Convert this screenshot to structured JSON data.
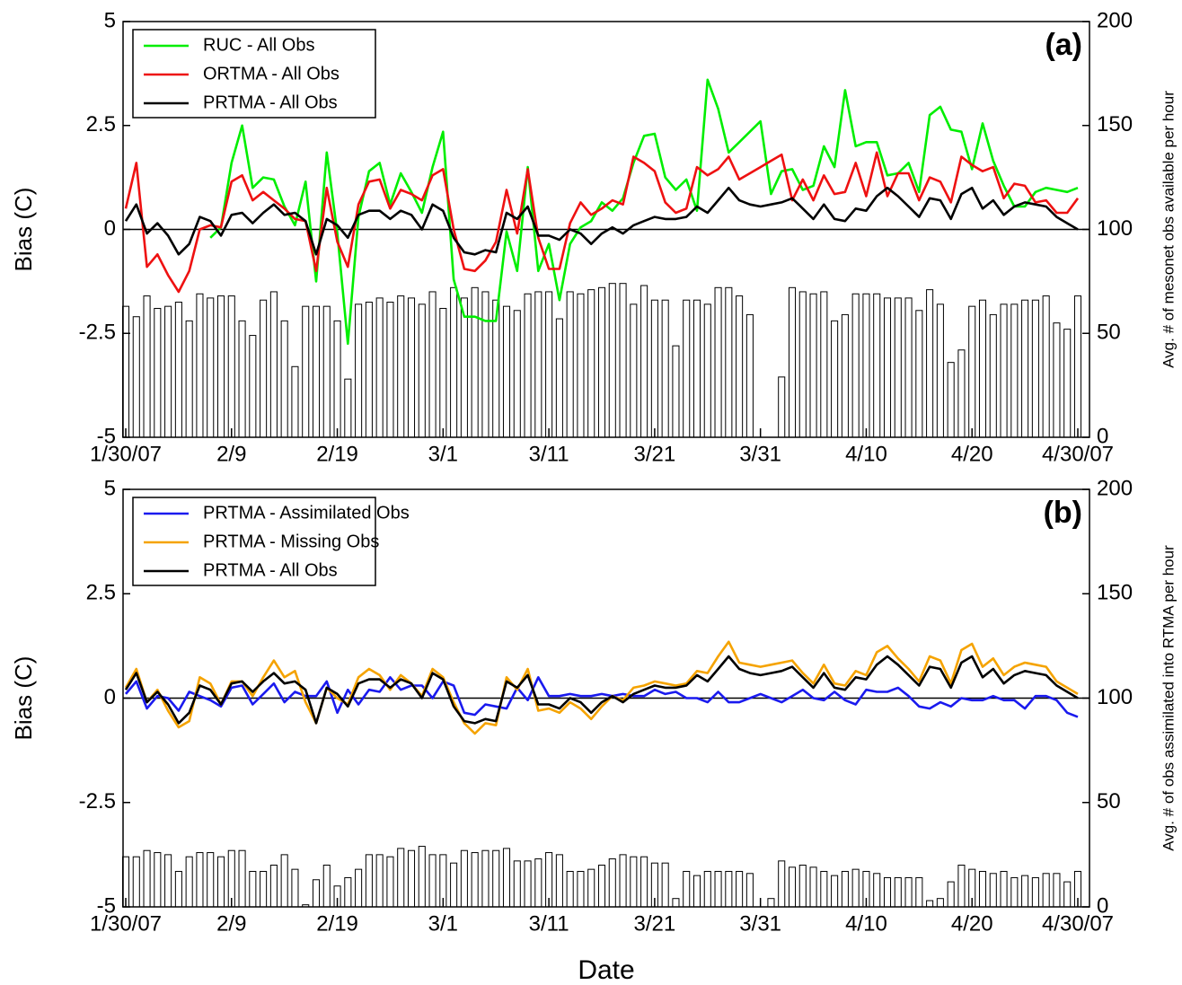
{
  "chart_data": [
    {
      "type": "combo",
      "title": "(a)",
      "ylabel": "Bias (C)",
      "y2label": "Avg. # of mesonet obs available per hour",
      "legend": "upper left",
      "categories": [
        "1/30/07",
        null,
        null,
        null,
        null,
        null,
        null,
        null,
        null,
        null,
        "2/9",
        null,
        null,
        null,
        null,
        null,
        null,
        null,
        null,
        null,
        "2/19",
        null,
        null,
        null,
        null,
        null,
        null,
        null,
        null,
        null,
        "3/1",
        null,
        null,
        null,
        null,
        null,
        null,
        null,
        null,
        null,
        "3/11",
        null,
        null,
        null,
        null,
        null,
        null,
        null,
        null,
        null,
        "3/21",
        null,
        null,
        null,
        null,
        null,
        null,
        null,
        null,
        null,
        "3/31",
        null,
        null,
        null,
        null,
        null,
        null,
        null,
        null,
        null,
        "4/10",
        null,
        null,
        null,
        null,
        null,
        null,
        null,
        null,
        null,
        "4/20",
        null,
        null,
        null,
        null,
        null,
        null,
        null,
        null,
        null,
        "4/30/07"
      ],
      "ylim": [
        -5,
        5
      ],
      "yticks": [
        -5,
        -2.5,
        0,
        2.5,
        5
      ],
      "y2lim": [
        0,
        200
      ],
      "y2ticks": [
        0,
        50,
        100,
        150,
        200
      ],
      "series": [
        {
          "type": "bar",
          "axis": "y2",
          "color": "#ffffff",
          "values": [
            63,
            58,
            68,
            62,
            63,
            65,
            56,
            69,
            67,
            68,
            68,
            56,
            49,
            66,
            70,
            56,
            34,
            63,
            63,
            63,
            56,
            28,
            64,
            65,
            67,
            65,
            68,
            67,
            64,
            70,
            62,
            72,
            67,
            72,
            70,
            66,
            63,
            61,
            69,
            70,
            70,
            57,
            70,
            69,
            71,
            72,
            74,
            74,
            64,
            73,
            66,
            66,
            44,
            66,
            66,
            64,
            72,
            72,
            68,
            59,
            null,
            null,
            29,
            72,
            70,
            69,
            70,
            56,
            59,
            69,
            69,
            69,
            67,
            67,
            67,
            61,
            71,
            64,
            36,
            42,
            63,
            66,
            59,
            64,
            64,
            66,
            66,
            68,
            55,
            52,
            68
          ]
        },
        {
          "name": "RUC - All Obs",
          "color": "#00ee00",
          "values": [
            null,
            null,
            null,
            null,
            null,
            null,
            null,
            null,
            -0.2,
            0.05,
            1.6,
            2.5,
            1.0,
            1.25,
            1.2,
            0.55,
            0.1,
            1.15,
            -1.25,
            1.85,
            -0.1,
            -2.75,
            0.3,
            1.4,
            1.6,
            0.6,
            1.35,
            0.9,
            0.4,
            1.5,
            2.35,
            -1.2,
            -2.1,
            -2.1,
            -2.2,
            -2.2,
            -0.05,
            -1.0,
            1.5,
            -1.0,
            -0.35,
            -1.7,
            -0.35,
            0.05,
            0.2,
            0.65,
            0.45,
            0.75,
            1.6,
            2.25,
            2.3,
            1.25,
            0.95,
            1.2,
            0.45,
            3.6,
            2.9,
            1.85,
            2.1,
            2.35,
            2.6,
            0.85,
            1.4,
            1.45,
            0.95,
            1.05,
            2.0,
            1.5,
            3.35,
            2.0,
            2.1,
            2.1,
            1.3,
            1.35,
            1.6,
            0.9,
            2.75,
            2.95,
            2.4,
            2.35,
            1.45,
            2.55,
            1.65,
            1.05,
            0.55,
            0.55,
            0.9,
            1.0,
            0.95,
            0.9,
            1.0
          ]
        },
        {
          "name": "ORTMA - All Obs",
          "color": "#ee1111",
          "values": [
            0.5,
            1.6,
            -0.9,
            -0.6,
            -1.1,
            -1.5,
            -1.0,
            0.0,
            0.1,
            0.05,
            1.15,
            1.3,
            0.7,
            0.9,
            0.7,
            0.5,
            0.25,
            0.2,
            -1.0,
            1.0,
            -0.3,
            -0.9,
            0.6,
            1.15,
            1.2,
            0.5,
            0.95,
            0.85,
            0.7,
            1.3,
            1.45,
            0.0,
            -0.95,
            -1.0,
            -0.75,
            -0.3,
            0.95,
            -0.1,
            1.45,
            -0.2,
            -0.95,
            -0.95,
            0.15,
            0.65,
            0.35,
            0.5,
            0.7,
            0.6,
            1.75,
            1.6,
            1.4,
            0.65,
            0.4,
            0.5,
            1.5,
            1.3,
            1.45,
            1.75,
            1.2,
            1.35,
            1.5,
            1.65,
            1.8,
            0.7,
            1.2,
            0.7,
            1.3,
            0.85,
            0.9,
            1.6,
            0.8,
            1.85,
            0.8,
            1.35,
            1.35,
            0.7,
            1.25,
            1.15,
            0.65,
            1.75,
            1.55,
            1.4,
            1.5,
            0.75,
            1.1,
            1.05,
            0.65,
            0.7,
            0.4,
            0.4,
            0.75
          ]
        },
        {
          "name": "PRTMA - All Obs",
          "color": "#000000",
          "values": [
            0.2,
            0.6,
            -0.1,
            0.15,
            -0.15,
            -0.6,
            -0.35,
            0.3,
            0.2,
            -0.15,
            0.35,
            0.4,
            0.15,
            0.4,
            0.6,
            0.35,
            0.4,
            0.2,
            -0.6,
            0.25,
            0.1,
            -0.2,
            0.35,
            0.45,
            0.45,
            0.25,
            0.45,
            0.35,
            0.0,
            0.6,
            0.45,
            -0.2,
            -0.55,
            -0.6,
            -0.5,
            -0.55,
            0.4,
            0.25,
            0.55,
            -0.15,
            -0.15,
            -0.25,
            0.0,
            -0.1,
            -0.35,
            -0.1,
            0.05,
            -0.1,
            0.1,
            0.2,
            0.3,
            0.25,
            0.25,
            0.3,
            0.55,
            0.4,
            0.7,
            1.0,
            0.7,
            0.6,
            0.55,
            0.6,
            0.65,
            0.75,
            0.5,
            0.25,
            0.6,
            0.25,
            0.2,
            0.5,
            0.45,
            0.8,
            1.0,
            0.8,
            0.55,
            0.3,
            0.75,
            0.7,
            0.25,
            0.85,
            1.0,
            0.5,
            0.7,
            0.35,
            0.55,
            0.65,
            0.6,
            0.55,
            0.3,
            0.15,
            0.0
          ]
        }
      ]
    },
    {
      "type": "combo",
      "title": "(b)",
      "ylabel": "Bias (C)",
      "y2label": "Avg. # of obs assimilated into RTMA per hour",
      "xlabel": "Date",
      "legend": "upper left",
      "categories": [
        "1/30/07",
        null,
        null,
        null,
        null,
        null,
        null,
        null,
        null,
        null,
        "2/9",
        null,
        null,
        null,
        null,
        null,
        null,
        null,
        null,
        null,
        "2/19",
        null,
        null,
        null,
        null,
        null,
        null,
        null,
        null,
        null,
        "3/1",
        null,
        null,
        null,
        null,
        null,
        null,
        null,
        null,
        null,
        "3/11",
        null,
        null,
        null,
        null,
        null,
        null,
        null,
        null,
        null,
        "3/21",
        null,
        null,
        null,
        null,
        null,
        null,
        null,
        null,
        null,
        "3/31",
        null,
        null,
        null,
        null,
        null,
        null,
        null,
        null,
        null,
        "4/10",
        null,
        null,
        null,
        null,
        null,
        null,
        null,
        null,
        null,
        "4/20",
        null,
        null,
        null,
        null,
        null,
        null,
        null,
        null,
        null,
        "4/30/07"
      ],
      "ylim": [
        -5,
        5
      ],
      "yticks": [
        -5,
        -2.5,
        0,
        2.5,
        5
      ],
      "y2lim": [
        0,
        200
      ],
      "y2ticks": [
        0,
        50,
        100,
        150,
        200
      ],
      "series": [
        {
          "type": "bar",
          "axis": "y2",
          "color": "#ffffff",
          "values": [
            24,
            24,
            27,
            26,
            25,
            17,
            24,
            26,
            26,
            24,
            27,
            27,
            17,
            17,
            20,
            25,
            18,
            1,
            13,
            20,
            10,
            14,
            18,
            25,
            25,
            24,
            28,
            27,
            29,
            25,
            25,
            21,
            27,
            26,
            27,
            27,
            28,
            22,
            22,
            23,
            26,
            25,
            17,
            17,
            18,
            20,
            23,
            25,
            24,
            24,
            21,
            21,
            4,
            17,
            15,
            17,
            17,
            17,
            17,
            16,
            null,
            4,
            22,
            19,
            20,
            19,
            17,
            15,
            17,
            18,
            17,
            16,
            14,
            14,
            14,
            14,
            3,
            4,
            12,
            20,
            18,
            17,
            16,
            17,
            14,
            15,
            14,
            16,
            16,
            12,
            17
          ]
        },
        {
          "name": "PRTMA - Assimilated Obs",
          "color": "#1a1aee",
          "values": [
            0.1,
            0.4,
            -0.25,
            0.05,
            0.0,
            -0.3,
            0.15,
            0.05,
            -0.05,
            -0.2,
            0.25,
            0.3,
            -0.15,
            0.1,
            0.35,
            -0.1,
            0.15,
            0.05,
            0.05,
            0.4,
            -0.35,
            0.2,
            -0.15,
            0.2,
            0.15,
            0.5,
            0.2,
            0.3,
            0.3,
            0.0,
            0.4,
            0.3,
            -0.35,
            -0.4,
            -0.15,
            -0.2,
            -0.25,
            0.25,
            -0.05,
            0.5,
            0.05,
            0.05,
            0.1,
            0.05,
            0.05,
            0.1,
            0.05,
            0.1,
            0.05,
            0.05,
            0.2,
            0.1,
            0.15,
            0.0,
            0.0,
            -0.1,
            0.15,
            -0.1,
            -0.1,
            0.0,
            0.1,
            0.0,
            -0.1,
            0.05,
            0.2,
            0.0,
            -0.05,
            0.15,
            -0.05,
            -0.15,
            0.2,
            0.15,
            0.15,
            0.25,
            0.05,
            -0.2,
            -0.25,
            -0.1,
            -0.2,
            0.0,
            -0.05,
            -0.05,
            0.05,
            -0.05,
            -0.05,
            -0.25,
            0.05,
            0.05,
            -0.05,
            -0.35,
            -0.45
          ]
        },
        {
          "name": "PRTMA - Missing Obs",
          "color": "#f5a300",
          "values": [
            0.25,
            0.7,
            -0.1,
            0.2,
            -0.3,
            -0.7,
            -0.55,
            0.5,
            0.35,
            -0.15,
            0.4,
            0.4,
            0.05,
            0.5,
            0.9,
            0.5,
            0.65,
            -0.1,
            -0.6,
            0.25,
            0.0,
            -0.15,
            0.5,
            0.7,
            0.55,
            0.2,
            0.55,
            0.35,
            0.05,
            0.7,
            0.5,
            -0.1,
            -0.6,
            -0.85,
            -0.6,
            -0.65,
            0.5,
            0.2,
            0.7,
            -0.3,
            -0.25,
            -0.35,
            -0.1,
            -0.25,
            -0.5,
            -0.2,
            0.05,
            -0.05,
            0.25,
            0.3,
            0.4,
            0.35,
            0.3,
            0.35,
            0.65,
            0.6,
            1.0,
            1.35,
            0.85,
            0.8,
            0.75,
            0.8,
            0.85,
            0.9,
            0.6,
            0.35,
            0.8,
            0.35,
            0.3,
            0.65,
            0.55,
            1.1,
            1.25,
            0.95,
            0.7,
            0.4,
            1.0,
            0.9,
            0.35,
            1.15,
            1.3,
            0.75,
            0.95,
            0.55,
            0.75,
            0.85,
            0.8,
            0.75,
            0.4,
            0.25,
            0.1
          ]
        },
        {
          "name": "PRTMA - All Obs",
          "color": "#000000",
          "values": [
            0.2,
            0.6,
            -0.1,
            0.15,
            -0.15,
            -0.6,
            -0.35,
            0.3,
            0.2,
            -0.15,
            0.35,
            0.4,
            0.15,
            0.4,
            0.6,
            0.35,
            0.4,
            0.2,
            -0.6,
            0.25,
            0.1,
            -0.2,
            0.35,
            0.45,
            0.45,
            0.25,
            0.45,
            0.35,
            0.0,
            0.6,
            0.45,
            -0.2,
            -0.55,
            -0.6,
            -0.5,
            -0.55,
            0.4,
            0.25,
            0.55,
            -0.15,
            -0.15,
            -0.25,
            0.0,
            -0.1,
            -0.35,
            -0.1,
            0.05,
            -0.1,
            0.1,
            0.2,
            0.3,
            0.25,
            0.25,
            0.3,
            0.55,
            0.4,
            0.7,
            1.0,
            0.7,
            0.6,
            0.55,
            0.6,
            0.65,
            0.75,
            0.5,
            0.25,
            0.6,
            0.25,
            0.2,
            0.5,
            0.45,
            0.8,
            1.0,
            0.8,
            0.55,
            0.3,
            0.75,
            0.7,
            0.25,
            0.85,
            1.0,
            0.5,
            0.7,
            0.35,
            0.55,
            0.65,
            0.6,
            0.55,
            0.3,
            0.15,
            0.0
          ]
        }
      ]
    }
  ]
}
